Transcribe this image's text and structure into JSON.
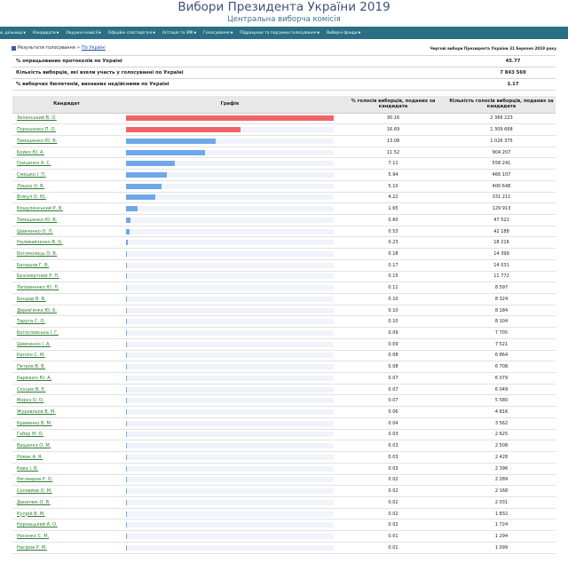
{
  "header": {
    "title": "Вибори Президента України 2019",
    "subtitle": "Центральна виборча комісія"
  },
  "nav": [
    {
      "label": "и, дільниці"
    },
    {
      "label": "Кандидати"
    },
    {
      "label": "Окружні комісії"
    },
    {
      "label": "Офіційні спостерігачі"
    },
    {
      "label": "Агітація та ЗМІ"
    },
    {
      "label": "Голосування"
    },
    {
      "label": "Підрахунок та підсумки голосування"
    },
    {
      "label": "Виборчі фонди"
    }
  ],
  "breadcrumb": {
    "section": "Результати голосування",
    "current": "По Україні",
    "timestamp": "Чергові вибори Президента України 31 березня 2019 року"
  },
  "summary": [
    {
      "label": "% опрацьованих протоколів по Україні",
      "value": "45.77"
    },
    {
      "label": "Кількість виборців, які взяли участь у голосуванні по Україні",
      "value": "7 843 569"
    },
    {
      "label": "% виборчих бюлетенів, визнаних недійсними по Україні",
      "value": "1.17"
    }
  ],
  "table": {
    "headers": {
      "candidate": "Кандидат",
      "graph": "Графік",
      "percent": "% голосів виборців, поданих за кандидата",
      "count": "Кількість голосів виборців, поданих за кандидата"
    },
    "colors": {
      "top": "#f06467",
      "mid": "#6fa8e8"
    },
    "rows": [
      {
        "name": "Зеленський В. О.",
        "pct": "30.16",
        "pct_value": 30.16,
        "count": "2 366 223",
        "color": "top"
      },
      {
        "name": "Порошенко П. О.",
        "pct": "16.69",
        "pct_value": 16.69,
        "count": "1 309 668",
        "color": "top"
      },
      {
        "name": "Тимошенко Ю. В.",
        "pct": "13.08",
        "pct_value": 13.08,
        "count": "1 026 375",
        "color": "mid"
      },
      {
        "name": "Бойко Ю. А.",
        "pct": "11.52",
        "pct_value": 11.52,
        "count": "904 207",
        "color": "mid"
      },
      {
        "name": "Гриценко А. С.",
        "pct": "7.11",
        "pct_value": 7.11,
        "count": "558 241",
        "color": "mid"
      },
      {
        "name": "Смешко І. П.",
        "pct": "5.94",
        "pct_value": 5.94,
        "count": "466 107",
        "color": "mid"
      },
      {
        "name": "Ляшко О. В.",
        "pct": "5.10",
        "pct_value": 5.1,
        "count": "400 648",
        "color": "mid"
      },
      {
        "name": "Вілкул О. Ю.",
        "pct": "4.22",
        "pct_value": 4.22,
        "count": "331 211",
        "color": "mid"
      },
      {
        "name": "Кошулинський Р. В.",
        "pct": "1.65",
        "pct_value": 1.65,
        "count": "129 913",
        "color": "mid"
      },
      {
        "name": "Тимошенко Ю. В.",
        "pct": "0.60",
        "pct_value": 0.6,
        "count": "47 522",
        "color": "mid"
      },
      {
        "name": "Шевченко О. Л.",
        "pct": "0.53",
        "pct_value": 0.53,
        "count": "42 188",
        "color": "mid"
      },
      {
        "name": "Наливайченко В. О.",
        "pct": "0.23",
        "pct_value": 0.23,
        "count": "18 216",
        "color": "mid"
      },
      {
        "name": "Богомолець О. В.",
        "pct": "0.18",
        "pct_value": 0.18,
        "count": "14 399",
        "color": "mid"
      },
      {
        "name": "Балашов Г. В.",
        "pct": "0.17",
        "pct_value": 0.17,
        "count": "14 031",
        "color": "mid"
      },
      {
        "name": "Безсмертний Р. П.",
        "pct": "0.15",
        "pct_value": 0.15,
        "count": "11 772",
        "color": "mid"
      },
      {
        "name": "Литвиненко Ю. Л.",
        "pct": "0.11",
        "pct_value": 0.11,
        "count": "8 597",
        "color": "mid"
      },
      {
        "name": "Бондар В. В.",
        "pct": "0.10",
        "pct_value": 0.1,
        "count": "8 324",
        "color": "mid"
      },
      {
        "name": "Дерев'янко Ю. Б.",
        "pct": "0.10",
        "pct_value": 0.1,
        "count": "8 184",
        "color": "mid"
      },
      {
        "name": "Тарута С. О.",
        "pct": "0.10",
        "pct_value": 0.1,
        "count": "8 104",
        "color": "mid"
      },
      {
        "name": "Богословська І. Г.",
        "pct": "0.09",
        "pct_value": 0.09,
        "count": "7 705",
        "color": "mid"
      },
      {
        "name": "Шевченко І. А.",
        "pct": "0.09",
        "pct_value": 0.09,
        "count": "7 521",
        "color": "mid"
      },
      {
        "name": "Каплін С. М.",
        "pct": "0.08",
        "pct_value": 0.08,
        "count": "6 864",
        "color": "mid"
      },
      {
        "name": "Петров В. В.",
        "pct": "0.08",
        "pct_value": 0.08,
        "count": "6 708",
        "color": "mid"
      },
      {
        "name": "Кармазін Ю. А.",
        "pct": "0.07",
        "pct_value": 0.07,
        "count": "6 079",
        "color": "mid"
      },
      {
        "name": "Скоцик В. Є.",
        "pct": "0.07",
        "pct_value": 0.07,
        "count": "6 049",
        "color": "mid"
      },
      {
        "name": "Мороз О. О.",
        "pct": "0.07",
        "pct_value": 0.07,
        "count": "5 580",
        "color": "mid"
      },
      {
        "name": "Журавльов В. М.",
        "pct": "0.06",
        "pct_value": 0.06,
        "count": "4 816",
        "color": "mid"
      },
      {
        "name": "Кривенко В. М.",
        "pct": "0.04",
        "pct_value": 0.04,
        "count": "3 562",
        "color": "mid"
      },
      {
        "name": "Габер М. О.",
        "pct": "0.03",
        "pct_value": 0.03,
        "count": "2 625",
        "color": "mid"
      },
      {
        "name": "Ващенко О. М.",
        "pct": "0.03",
        "pct_value": 0.03,
        "count": "2 508",
        "color": "mid"
      },
      {
        "name": "Новак А. Я.",
        "pct": "0.03",
        "pct_value": 0.03,
        "count": "2 428",
        "color": "mid"
      },
      {
        "name": "Кива І. В.",
        "pct": "0.03",
        "pct_value": 0.03,
        "count": "2 396",
        "color": "mid"
      },
      {
        "name": "Риговаров Р. О.",
        "pct": "0.02",
        "pct_value": 0.02,
        "count": "2 289",
        "color": "mid"
      },
      {
        "name": "Соловйов О. М.",
        "pct": "0.02",
        "pct_value": 0.02,
        "count": "2 168",
        "color": "mid"
      },
      {
        "name": "Данилюк О. В.",
        "pct": "0.02",
        "pct_value": 0.02,
        "count": "2 031",
        "color": "mid"
      },
      {
        "name": "Купрій В. М.",
        "pct": "0.02",
        "pct_value": 0.02,
        "count": "1 832",
        "color": "mid"
      },
      {
        "name": "Корнацький А. О.",
        "pct": "0.02",
        "pct_value": 0.02,
        "count": "1 724",
        "color": "mid"
      },
      {
        "name": "Носенко С. М.",
        "pct": "0.01",
        "pct_value": 0.01,
        "count": "1 294",
        "color": "mid"
      },
      {
        "name": "Насіров Р. М.",
        "pct": "0.01",
        "pct_value": 0.01,
        "count": "1 099",
        "color": "mid"
      }
    ]
  }
}
